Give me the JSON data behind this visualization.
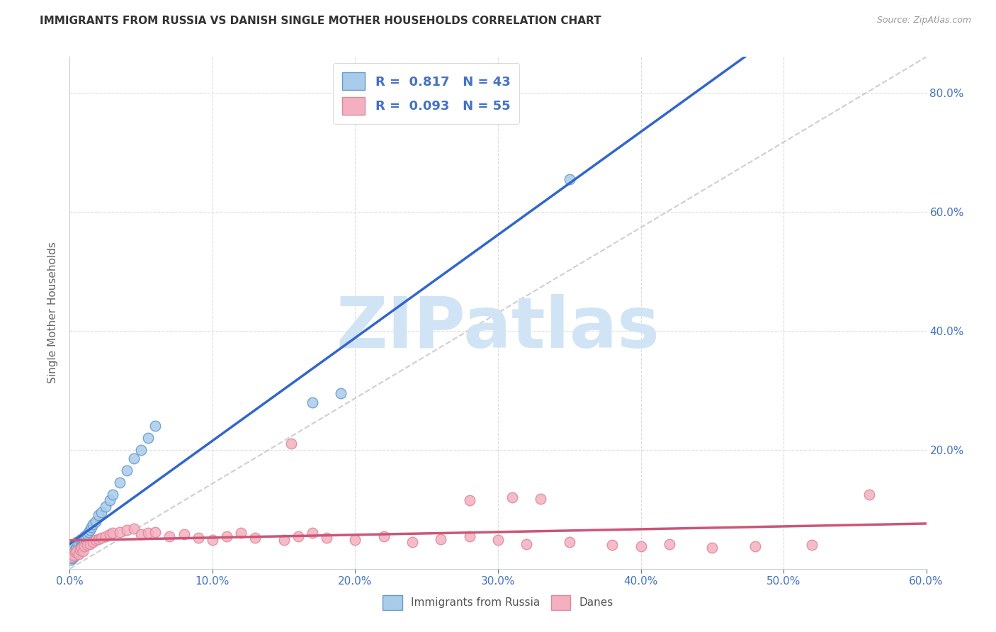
{
  "title": "IMMIGRANTS FROM RUSSIA VS DANISH SINGLE MOTHER HOUSEHOLDS CORRELATION CHART",
  "source": "Source: ZipAtlas.com",
  "ylabel_label": "Single Mother Households",
  "legend_label1": "Immigrants from Russia",
  "legend_label2": "Danes",
  "R1": 0.817,
  "N1": 43,
  "R2": 0.093,
  "N2": 55,
  "xlim": [
    0.0,
    0.6
  ],
  "ylim": [
    0.0,
    0.86
  ],
  "xticks": [
    0.0,
    0.1,
    0.2,
    0.3,
    0.4,
    0.5,
    0.6
  ],
  "yticks_right": [
    0.2,
    0.4,
    0.6,
    0.8
  ],
  "color_blue_fill": "#A8CCEA",
  "color_blue_edge": "#6699CC",
  "color_pink_fill": "#F4B0C0",
  "color_pink_edge": "#DD8899",
  "color_blue_line": "#3366CC",
  "color_pink_line": "#CC5577",
  "color_diag_line": "#BBBBBB",
  "blue_scatter_x": [
    0.001,
    0.001,
    0.002,
    0.002,
    0.002,
    0.003,
    0.003,
    0.003,
    0.004,
    0.004,
    0.005,
    0.005,
    0.005,
    0.006,
    0.006,
    0.007,
    0.007,
    0.008,
    0.008,
    0.009,
    0.01,
    0.01,
    0.011,
    0.012,
    0.013,
    0.014,
    0.015,
    0.016,
    0.018,
    0.02,
    0.022,
    0.025,
    0.028,
    0.03,
    0.035,
    0.04,
    0.045,
    0.05,
    0.055,
    0.06,
    0.17,
    0.19,
    0.35
  ],
  "blue_scatter_y": [
    0.015,
    0.02,
    0.018,
    0.025,
    0.03,
    0.02,
    0.028,
    0.035,
    0.022,
    0.032,
    0.025,
    0.038,
    0.045,
    0.03,
    0.042,
    0.035,
    0.048,
    0.038,
    0.05,
    0.042,
    0.045,
    0.055,
    0.05,
    0.058,
    0.062,
    0.065,
    0.07,
    0.075,
    0.08,
    0.09,
    0.095,
    0.105,
    0.115,
    0.125,
    0.145,
    0.165,
    0.185,
    0.2,
    0.22,
    0.24,
    0.28,
    0.295,
    0.655
  ],
  "pink_scatter_x": [
    0.001,
    0.002,
    0.003,
    0.004,
    0.005,
    0.006,
    0.007,
    0.008,
    0.009,
    0.01,
    0.012,
    0.014,
    0.016,
    0.018,
    0.02,
    0.022,
    0.025,
    0.028,
    0.03,
    0.035,
    0.04,
    0.045,
    0.05,
    0.055,
    0.06,
    0.07,
    0.08,
    0.09,
    0.1,
    0.11,
    0.12,
    0.13,
    0.15,
    0.16,
    0.17,
    0.18,
    0.2,
    0.22,
    0.24,
    0.26,
    0.28,
    0.3,
    0.32,
    0.35,
    0.38,
    0.4,
    0.42,
    0.45,
    0.48,
    0.52,
    0.28,
    0.31,
    0.33,
    0.56,
    0.155
  ],
  "pink_scatter_y": [
    0.02,
    0.025,
    0.022,
    0.028,
    0.03,
    0.025,
    0.032,
    0.035,
    0.03,
    0.038,
    0.04,
    0.042,
    0.045,
    0.048,
    0.05,
    0.052,
    0.055,
    0.058,
    0.06,
    0.062,
    0.065,
    0.068,
    0.058,
    0.06,
    0.062,
    0.055,
    0.058,
    0.052,
    0.048,
    0.055,
    0.06,
    0.052,
    0.048,
    0.055,
    0.06,
    0.052,
    0.048,
    0.055,
    0.045,
    0.05,
    0.055,
    0.048,
    0.042,
    0.045,
    0.04,
    0.038,
    0.042,
    0.035,
    0.038,
    0.04,
    0.115,
    0.12,
    0.118,
    0.125,
    0.21
  ],
  "watermark_text": "ZIPatlas",
  "watermark_color": "#D0E4F5",
  "background_color": "#FFFFFF",
  "grid_color": "#DDDDDD",
  "tick_color_right": "#4472C4",
  "tick_color_bottom": "#4472C4",
  "legend_color": "#4472C4",
  "title_fontsize": 11,
  "source_fontsize": 9,
  "ylabel_fontsize": 11,
  "legend_fontsize": 13,
  "watermark_fontsize": 72
}
